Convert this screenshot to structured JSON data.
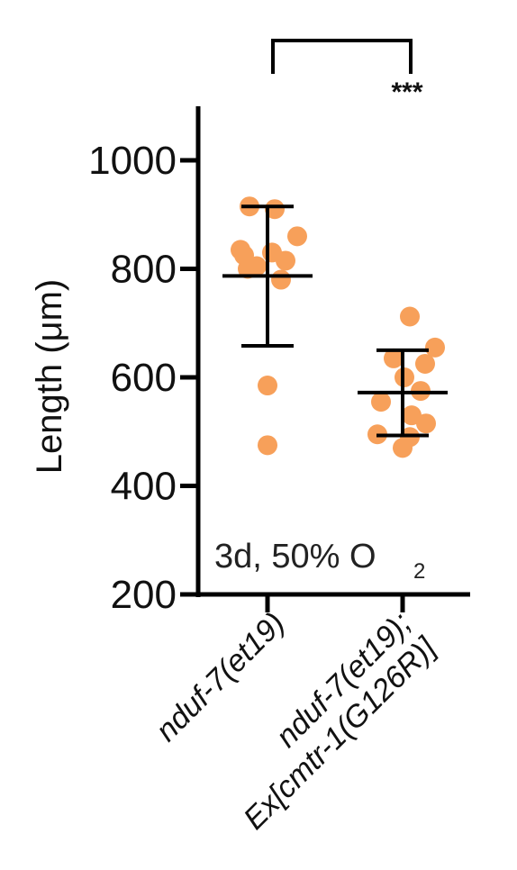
{
  "chart_data": {
    "type": "scatter",
    "ylabel": "Length (μm)",
    "ylim": [
      200,
      1100
    ],
    "yticks": [
      200,
      400,
      600,
      800,
      1000
    ],
    "categories": [
      {
        "lines": [
          "nduf-7(et19)"
        ]
      },
      {
        "lines": [
          "nduf-7(et19);",
          "Ex[cmtr-1(G126R)]"
        ]
      }
    ],
    "point_color": "#F7A05A",
    "groups": [
      {
        "points": [
          915,
          910,
          860,
          835,
          830,
          825,
          815,
          805,
          800,
          780,
          585,
          475
        ],
        "mean": 787,
        "sd_upper": 915,
        "sd_lower": 658
      },
      {
        "points": [
          712,
          655,
          635,
          625,
          600,
          575,
          555,
          530,
          515,
          495,
          490,
          470
        ],
        "mean": 572,
        "sd_upper": 650,
        "sd_lower": 493
      }
    ],
    "condition_text": "3d, 50% O",
    "condition_subscript": "2",
    "significance": "***"
  }
}
